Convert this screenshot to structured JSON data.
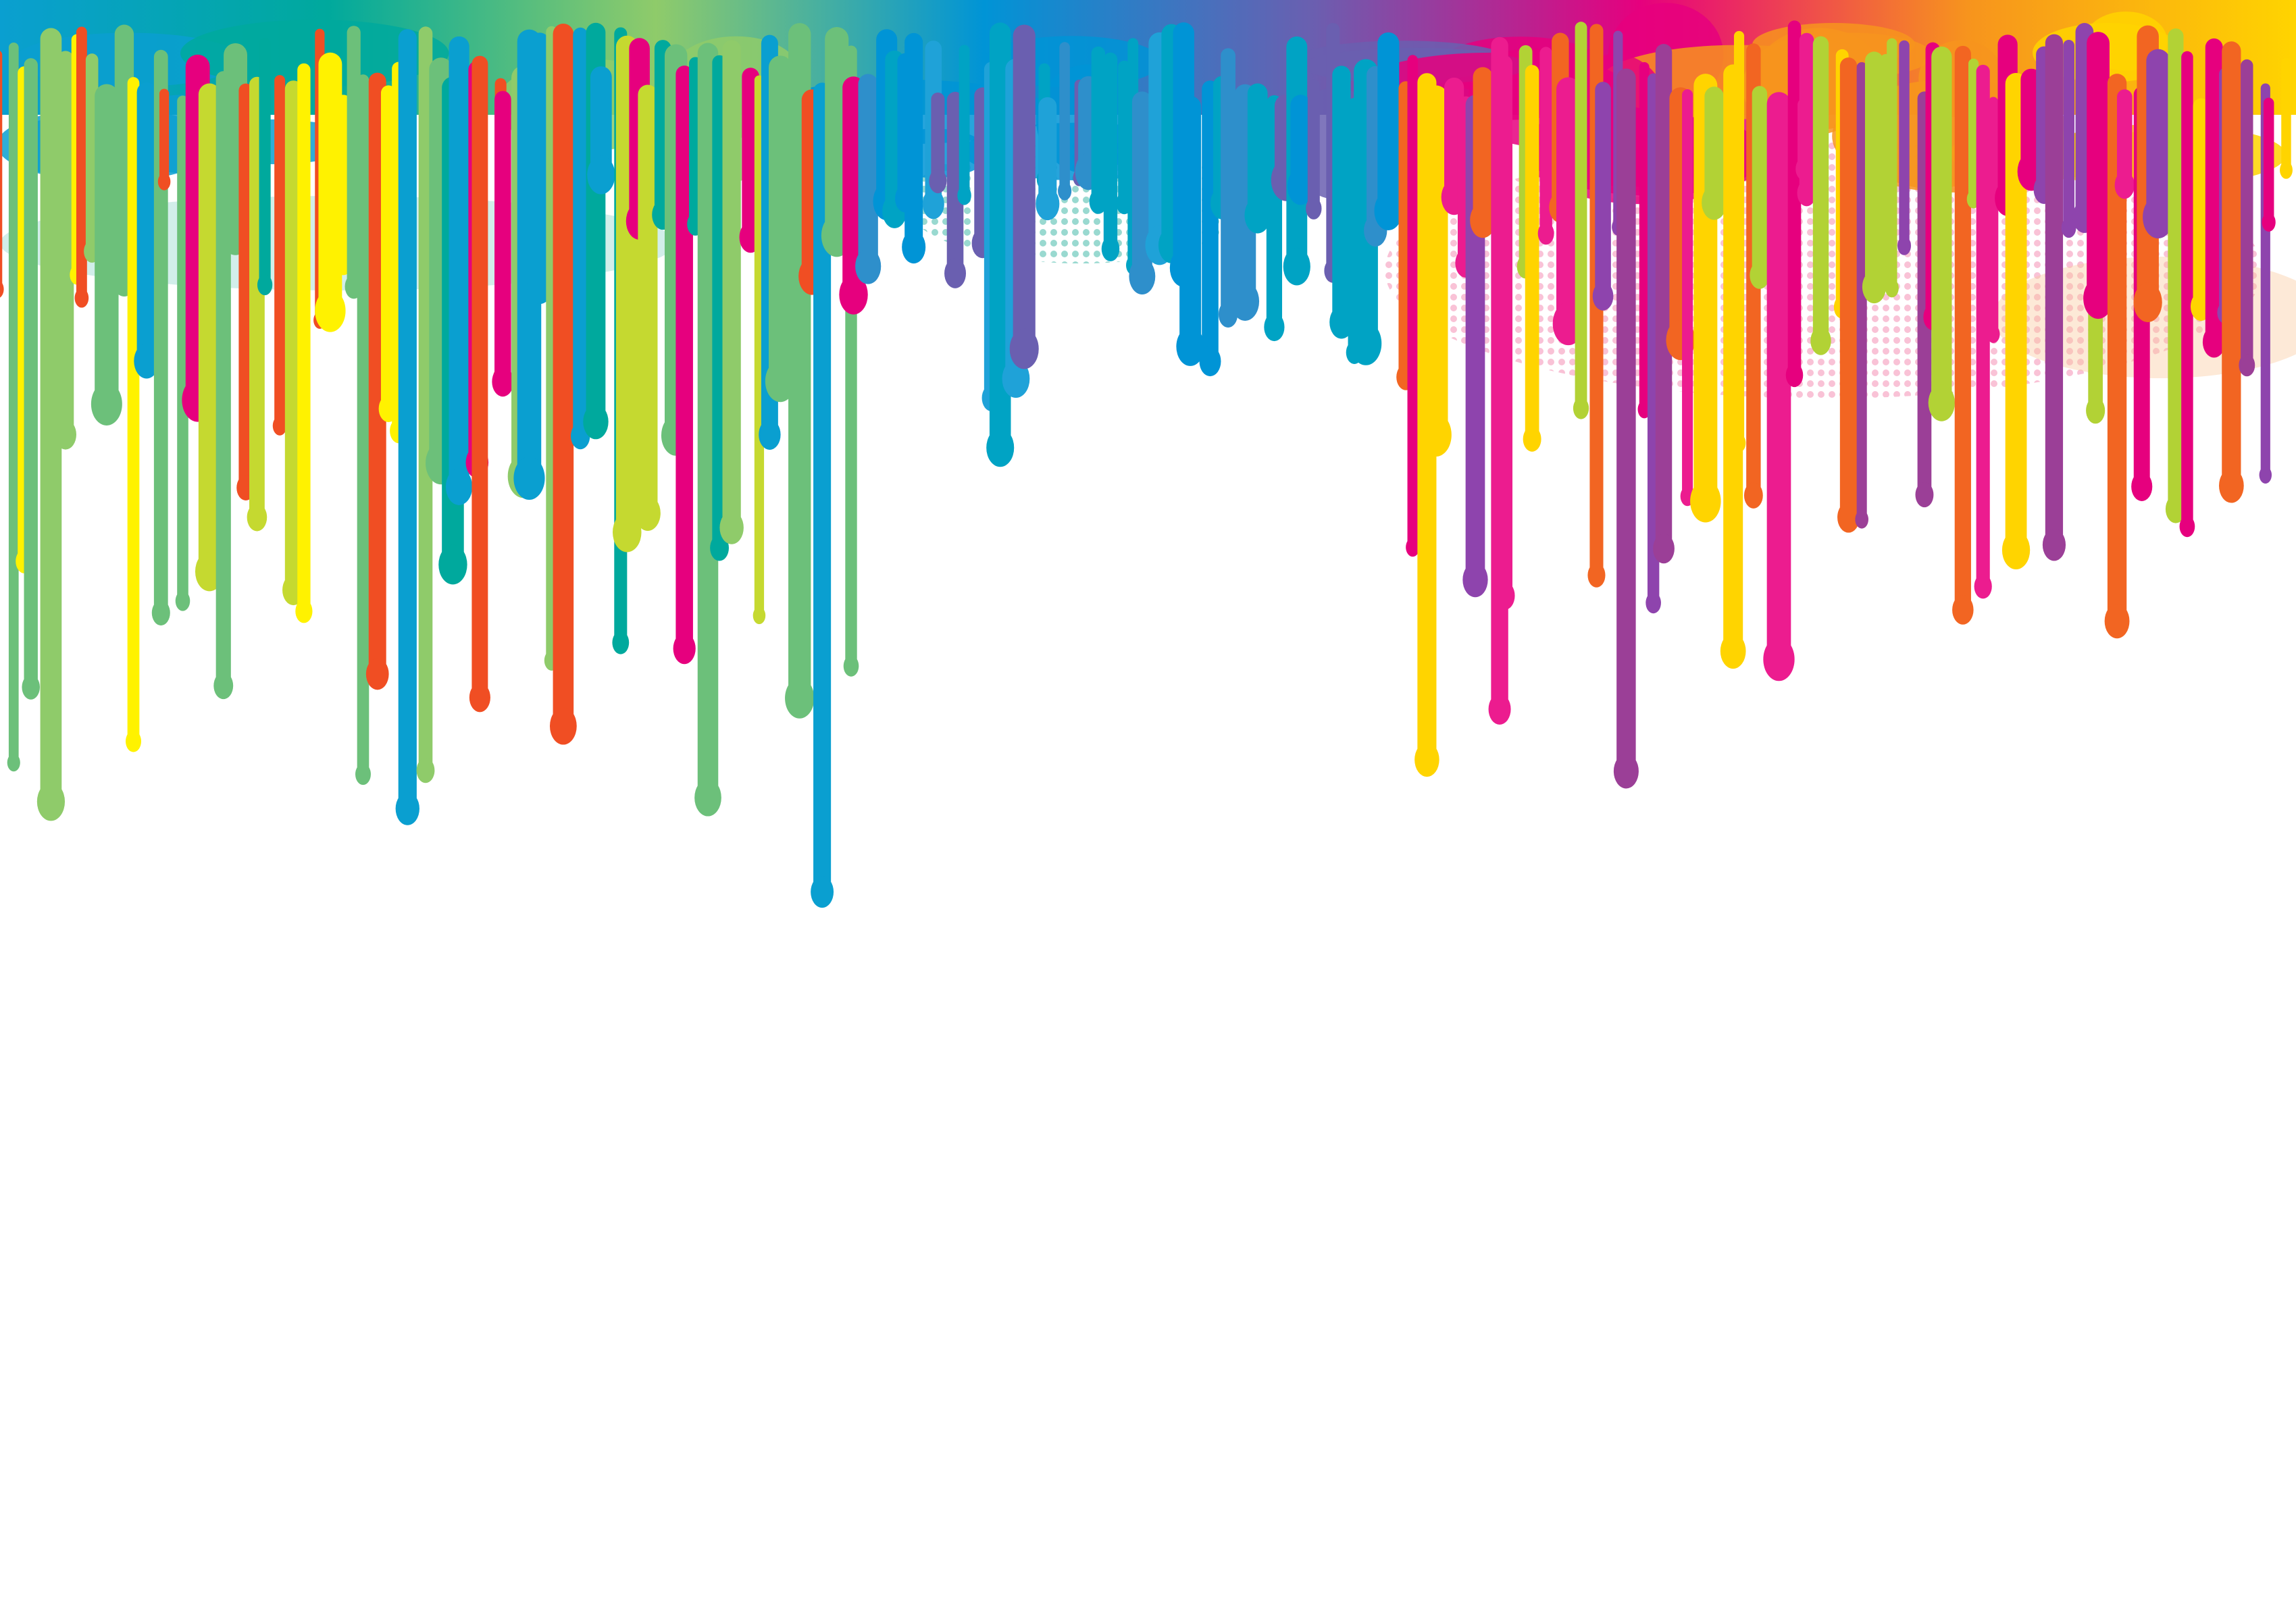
{
  "background": "#ffffff",
  "palette": {
    "left": [
      "#0a9fd0",
      "#c5d930",
      "#8fcb6a",
      "#f04e23",
      "#e6007e",
      "#fff200",
      "#00a99d",
      "#6cc07a"
    ],
    "center": [
      "#0094d6",
      "#1fa2d8",
      "#2e8fcb",
      "#00a3c4",
      "#6a5fb0"
    ],
    "right": [
      "#9b3f97",
      "#e6007e",
      "#f26522",
      "#ffd400",
      "#b2d235",
      "#8e44ad",
      "#ec1c8f"
    ]
  },
  "top_band_colors": [
    "#0a9fd0",
    "#00a99d",
    "#8fcb6a",
    "#0094d6",
    "#6a5fb0",
    "#e6007e",
    "#f7941d",
    "#ffd400"
  ],
  "halftone_colors": [
    "#7fcfc4",
    "#f7a8c4",
    "#fbc99a"
  ]
}
